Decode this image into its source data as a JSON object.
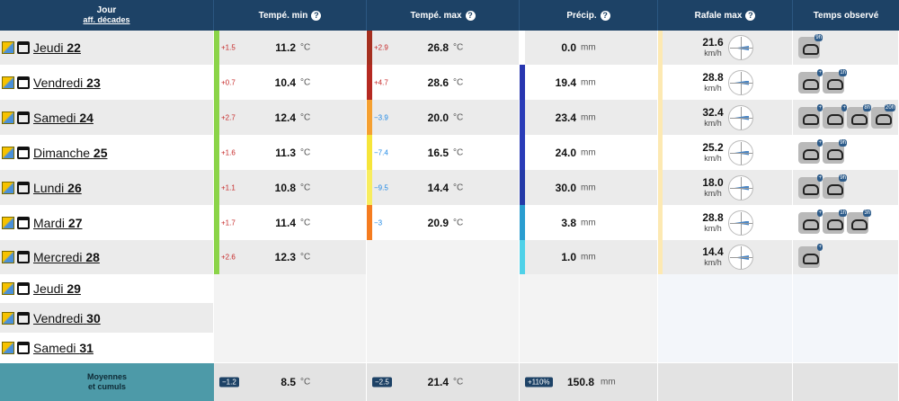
{
  "header": {
    "day_label": "Jour",
    "decades_link": "aff. décades",
    "tmin": "Tempé. min",
    "tmax": "Tempé. max",
    "precip": "Précip.",
    "wind": "Rafale max",
    "observed": "Temps observé",
    "help": "?"
  },
  "units": {
    "temp": "°C",
    "precip": "mm",
    "wind": "km/h"
  },
  "colors": {
    "header_bg": "#1d4266",
    "row_gray": "#ebebeb",
    "tmin_stripe": "#8bd448",
    "footer_label_bg": "#4d9aa8"
  },
  "rows": [
    {
      "day": "Jeudi",
      "num": "22",
      "tmin_anom": "+1.5",
      "tmin": "11.2",
      "tmax_anom": "+2.9",
      "tmax": "26.8",
      "tmax_color": "#a52f1f",
      "precip": "0.0",
      "precip_color": "#ffffff",
      "wind": "21.6",
      "wind_bar": "#fde9b2",
      "obs": [
        {
          "icon": "sun-haze-icon",
          "tag": "9h"
        }
      ]
    },
    {
      "day": "Vendredi",
      "num": "23",
      "tmin_anom": "+0.7",
      "tmin": "10.4",
      "tmax_anom": "+4.7",
      "tmax": "28.6",
      "tmax_color": "#b52a22",
      "precip": "19.4",
      "precip_color": "#2836b0",
      "wind": "28.8",
      "wind_bar": "#fde9b2",
      "obs": [
        {
          "icon": "storm-cloud-icon",
          "tag": "+"
        },
        {
          "icon": "sun-haze-icon",
          "tag": "1h"
        }
      ]
    },
    {
      "day": "Samedi",
      "num": "24",
      "tmin_anom": "+2.7",
      "tmin": "12.4",
      "tmax_anom": "−3.9",
      "tmax": "20.0",
      "tmax_color": "#f5a030",
      "precip": "23.4",
      "precip_color": "#2a3cb8",
      "wind": "32.4",
      "wind_bar": "#fde9b2",
      "obs": [
        {
          "icon": "rain-cloud-icon",
          "tag": "+"
        },
        {
          "icon": "rain-cloud-icon",
          "tag": "+"
        },
        {
          "icon": "storm-cloud-icon",
          "tag": "8h"
        },
        {
          "icon": "shower-cloud-icon",
          "tag": "20h"
        }
      ]
    },
    {
      "day": "Dimanche",
      "num": "25",
      "tmin_anom": "+1.6",
      "tmin": "11.3",
      "tmax_anom": "−7.4",
      "tmax": "16.5",
      "tmax_color": "#f6e53a",
      "precip": "24.0",
      "precip_color": "#2a3cb8",
      "wind": "25.2",
      "wind_bar": "#fde9b2",
      "obs": [
        {
          "icon": "rain-cloud-icon",
          "tag": "+"
        },
        {
          "icon": "rain-cloud-icon",
          "tag": "9h"
        }
      ]
    },
    {
      "day": "Lundi",
      "num": "26",
      "tmin_anom": "+1.1",
      "tmin": "10.8",
      "tmax_anom": "−9.5",
      "tmax": "14.4",
      "tmax_color": "#f8ed5e",
      "precip": "30.0",
      "precip_color": "#243aa8",
      "wind": "18.0",
      "wind_bar": "#fde9b2",
      "obs": [
        {
          "icon": "rain-cloud-icon",
          "tag": "+"
        },
        {
          "icon": "rain-cloud-icon",
          "tag": "9h"
        }
      ]
    },
    {
      "day": "Mardi",
      "num": "27",
      "tmin_anom": "+1.7",
      "tmin": "11.4",
      "tmax_anom": "−3",
      "tmax": "20.9",
      "tmax_color": "#f57c1f",
      "precip": "3.8",
      "precip_color": "#2a9dd0",
      "wind": "28.8",
      "wind_bar": "#fde9b2",
      "obs": [
        {
          "icon": "rain-cloud-icon",
          "tag": "+"
        },
        {
          "icon": "rain-cloud-icon",
          "tag": "1h"
        },
        {
          "icon": "sun-haze-icon",
          "tag": "3h"
        }
      ]
    },
    {
      "day": "Mercredi",
      "num": "28",
      "tmin_anom": "+2.6",
      "tmin": "12.3",
      "tmax_anom": "",
      "tmax": "",
      "tmax_color": "",
      "precip": "1.0",
      "precip_color": "#4fd1e8",
      "wind": "14.4",
      "wind_bar": "#fde9b2",
      "obs": [
        {
          "icon": "rain-cloud-icon",
          "tag": "+"
        }
      ]
    },
    {
      "day": "Jeudi",
      "num": "29",
      "tmin_anom": "",
      "tmin": "",
      "tmax_anom": "",
      "tmax": "",
      "tmax_color": "",
      "precip": "",
      "precip_color": "",
      "wind": "",
      "wind_bar": "",
      "obs": []
    },
    {
      "day": "Vendredi",
      "num": "30",
      "tmin_anom": "",
      "tmin": "",
      "tmax_anom": "",
      "tmax": "",
      "tmax_color": "",
      "precip": "",
      "precip_color": "",
      "wind": "",
      "wind_bar": "",
      "obs": []
    },
    {
      "day": "Samedi",
      "num": "31",
      "tmin_anom": "",
      "tmin": "",
      "tmax_anom": "",
      "tmax": "",
      "tmax_color": "",
      "precip": "",
      "precip_color": "",
      "wind": "",
      "wind_bar": "",
      "obs": []
    }
  ],
  "footer": {
    "label_line1": "Moyennes",
    "label_line2": "et cumuls",
    "tmin_badge": "−1.2",
    "tmin": "8.5",
    "tmax_badge": "−2.5",
    "tmax": "21.4",
    "precip_badge": "+110%",
    "precip": "150.8"
  }
}
